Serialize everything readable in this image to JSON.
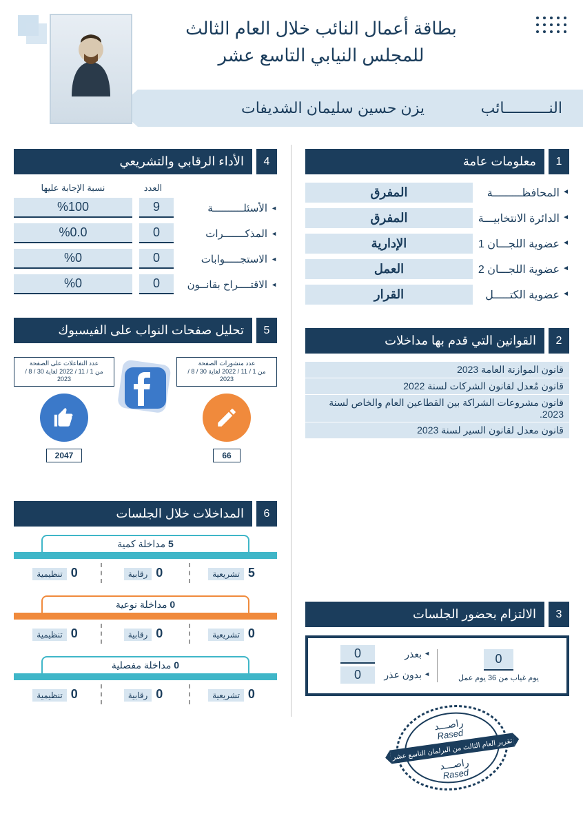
{
  "header": {
    "title_line1": "بطاقة أعمال النائب خلال العام الثالث",
    "title_line2": "للمجلس النيابي التاسع عشر",
    "deputy_label": "النــــــــــائب",
    "deputy_name": "يزن حسين سليمان الشديفات"
  },
  "colors": {
    "navy": "#1b3d5c",
    "light_blue": "#d7e5f0",
    "teal": "#3fb6c8",
    "orange": "#f08a3c",
    "fb_blue": "#3b79c9"
  },
  "sec1": {
    "num": "1",
    "title": "معلومات عامة",
    "rows": [
      {
        "label": "المحافظـــــــــة",
        "value": "المفرق"
      },
      {
        "label": "الدائرة الانتخابيـــة",
        "value": "المفرق"
      },
      {
        "label": "عضوية اللجـــان 1",
        "value": "الإدارية"
      },
      {
        "label": "عضوية اللجـــان 2",
        "value": "العمل"
      },
      {
        "label": "عضوية الكتـــــل",
        "value": "القرار"
      }
    ]
  },
  "sec2": {
    "num": "2",
    "title": "القوانين التي قدم بها مداخلات",
    "laws": [
      "قانون الموازنة العامة 2023",
      "قانون مُعدل لقانون الشركات لسنة 2022",
      "قانون مشروعات الشراكة بين القطاعين العام والخاص لسنة 2023.",
      "قانون معدل لقانون السير لسنة 2023"
    ]
  },
  "sec3": {
    "num": "3",
    "title": "الالتزام بحضور الجلسات",
    "absent_days": "0",
    "absent_caption": "يوم غياب من 36 يوم عمل",
    "excused_label": "بعذر",
    "excused_value": "0",
    "unexcused_label": "بدون عذر",
    "unexcused_value": "0"
  },
  "sec4": {
    "num": "4",
    "title": "الأداء الرقابي والتشريعي",
    "head_count": "العدد",
    "head_rate": "نسبة الإجابة عليها",
    "rows": [
      {
        "label": "الأسئلــــــــــة",
        "count": "9",
        "rate": "%100"
      },
      {
        "label": "المذكـــــــرات",
        "count": "0",
        "rate": "%0.0"
      },
      {
        "label": "الاستجـــــوابات",
        "count": "0",
        "rate": "%0"
      },
      {
        "label": "الاقتــــراح بقانــون",
        "count": "0",
        "rate": "%0"
      }
    ]
  },
  "sec5": {
    "num": "5",
    "title": "تحليل صفحات النواب على الفيسبوك",
    "posts": {
      "caption_t": "عدد منشورات الصفحة",
      "caption_d": "من 1 / 11 / 2022 لغاية 30 / 8 / 2023",
      "value": "66",
      "color": "#f08a3c"
    },
    "interactions": {
      "caption_t": "عدد التفاعلات على الصفحة",
      "caption_d": "من 1 / 11 / 2022 لغاية 30 / 8 / 2023",
      "value": "2047",
      "color": "#3b79c9"
    }
  },
  "sec6": {
    "num": "6",
    "title": "المداخلات خلال الجلسات",
    "groups": [
      {
        "label": "مداخلة كمية",
        "total": "5",
        "color": "#3fb6c8",
        "cells": [
          {
            "t": "تشريعية",
            "n": "5"
          },
          {
            "t": "رقابية",
            "n": "0"
          },
          {
            "t": "تنظيمية",
            "n": "0"
          }
        ]
      },
      {
        "label": "مداخلة نوعية",
        "total": "0",
        "color": "#f08a3c",
        "cells": [
          {
            "t": "تشريعية",
            "n": "0"
          },
          {
            "t": "رقابية",
            "n": "0"
          },
          {
            "t": "تنظيمية",
            "n": "0"
          }
        ]
      },
      {
        "label": "مداخلة مفصلية",
        "total": "0",
        "color": "#3fb6c8",
        "cells": [
          {
            "t": "تشريعية",
            "n": "0"
          },
          {
            "t": "رقابية",
            "n": "0"
          },
          {
            "t": "تنظيمية",
            "n": "0"
          }
        ]
      }
    ]
  },
  "stamp": {
    "text_ar": "راصـــد",
    "text_en": "Rased",
    "banner": "تقرير العام الثالث من البرلمان التاسع عشر"
  }
}
